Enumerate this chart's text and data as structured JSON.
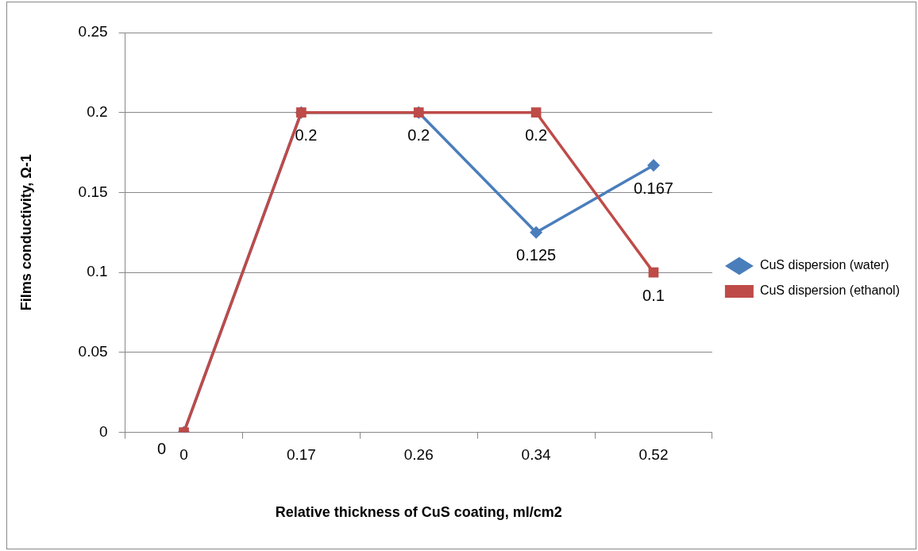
{
  "chart_data": {
    "type": "line",
    "xlabel": "Relative thickness of CuS coating, ml/cm2",
    "ylabel": "Films conductivity, Ω-1",
    "categories": [
      "0",
      "0.17",
      "0.26",
      "0.34",
      "0.52"
    ],
    "series": [
      {
        "name": "CuS dispersion (water)",
        "color": "#4a7ebb",
        "marker": "diamond",
        "values": [
          0,
          0.2,
          0.2,
          0.125,
          0.167
        ],
        "value_labels": [
          "0",
          "0.2",
          "0.2",
          "0.125",
          "0.167"
        ]
      },
      {
        "name": "CuS dispersion (ethanol)",
        "color": "#be4b48",
        "marker": "square",
        "values": [
          0,
          0.2,
          0.2,
          0.2,
          0.1
        ],
        "value_labels": [
          null,
          null,
          null,
          "0.2",
          "0.1"
        ]
      }
    ],
    "ylim": [
      0,
      0.25
    ],
    "yticks": [
      0,
      0.05,
      0.1,
      0.15,
      0.2,
      0.25
    ],
    "grid": "y",
    "legend": "right",
    "line_style": "solid"
  }
}
